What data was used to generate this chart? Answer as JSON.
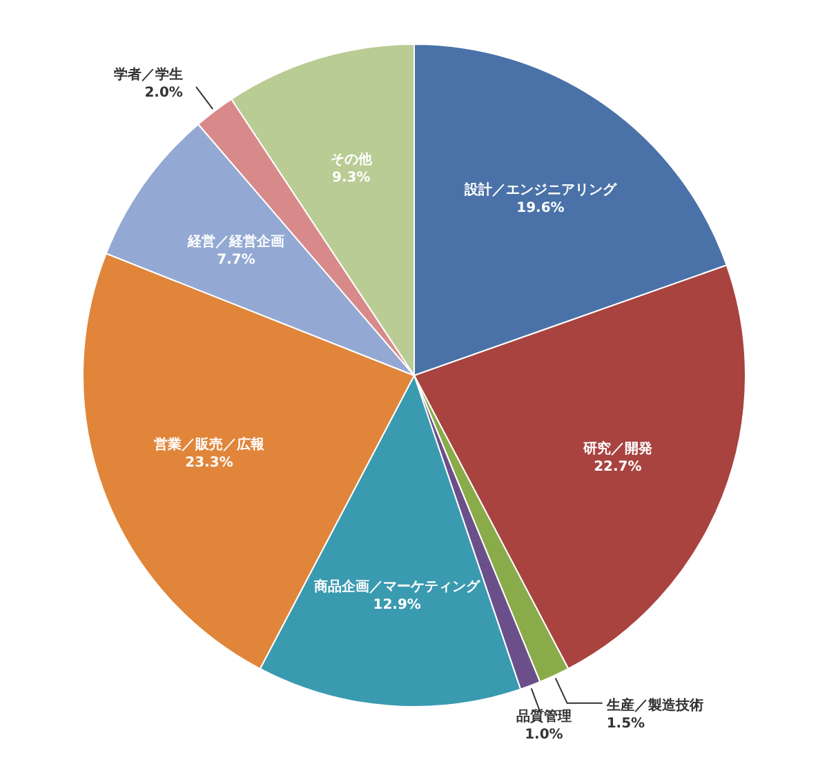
{
  "chart_data": {
    "type": "pie",
    "categories": [
      "設計／エンジニアリング",
      "研究／開発",
      "生産／製造技術",
      "品質管理",
      "商品企画／マーケティング",
      "営業／販売／広報",
      "経営／経営企画",
      "学者／学生",
      "その他"
    ],
    "values": [
      19.6,
      22.7,
      1.5,
      1.0,
      12.9,
      23.3,
      7.7,
      2.0,
      9.3
    ],
    "colors": [
      "#4a72a8",
      "#a84340",
      "#8aab4a",
      "#6b4f8a",
      "#3a9ab0",
      "#e0853a",
      "#93a9d3",
      "#d88a8a",
      "#b8cc93"
    ],
    "value_labels": [
      "19.6%",
      "22.7%",
      "1.5%",
      "1.0%",
      "12.9%",
      "23.3%",
      "7.7%",
      "2.0%",
      "9.3%"
    ]
  }
}
